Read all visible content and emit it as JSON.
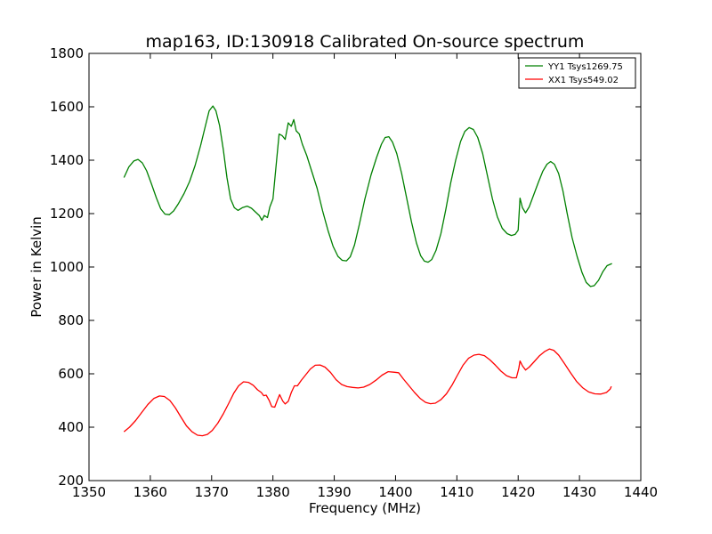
{
  "chart_data": {
    "type": "line",
    "title": "map163, ID:130918 Calibrated On-source spectrum",
    "xlabel": "Frequency (MHz)",
    "ylabel": "Power in Kelvin",
    "xlim": [
      1350,
      1440
    ],
    "ylim": [
      200,
      1800
    ],
    "xticks": [
      1350,
      1360,
      1370,
      1380,
      1390,
      1400,
      1410,
      1420,
      1430,
      1440
    ],
    "yticks": [
      200,
      400,
      600,
      800,
      1000,
      1200,
      1400,
      1600,
      1800
    ],
    "grid": false,
    "legend_position": "top-right",
    "series": [
      {
        "name": "YY1 Tsys1269.75",
        "color": "#008000",
        "points": [
          [
            1355.7,
            1335
          ],
          [
            1356.5,
            1375
          ],
          [
            1357.3,
            1397
          ],
          [
            1358.0,
            1403
          ],
          [
            1358.7,
            1390
          ],
          [
            1359.4,
            1360
          ],
          [
            1360.2,
            1310
          ],
          [
            1361.0,
            1258
          ],
          [
            1361.7,
            1218
          ],
          [
            1362.4,
            1198
          ],
          [
            1363.1,
            1196
          ],
          [
            1363.8,
            1210
          ],
          [
            1364.6,
            1238
          ],
          [
            1365.5,
            1275
          ],
          [
            1366.4,
            1320
          ],
          [
            1367.3,
            1380
          ],
          [
            1368.2,
            1455
          ],
          [
            1369.0,
            1530
          ],
          [
            1369.6,
            1585
          ],
          [
            1370.2,
            1603
          ],
          [
            1370.7,
            1585
          ],
          [
            1371.3,
            1530
          ],
          [
            1371.9,
            1440
          ],
          [
            1372.5,
            1335
          ],
          [
            1373.1,
            1255
          ],
          [
            1373.7,
            1222
          ],
          [
            1374.3,
            1212
          ],
          [
            1375.0,
            1222
          ],
          [
            1375.8,
            1228
          ],
          [
            1376.5,
            1220
          ],
          [
            1377.2,
            1205
          ],
          [
            1377.8,
            1192
          ],
          [
            1378.2,
            1175
          ],
          [
            1378.6,
            1193
          ],
          [
            1379.1,
            1185
          ],
          [
            1379.5,
            1225
          ],
          [
            1380.0,
            1255
          ],
          [
            1380.6,
            1400
          ],
          [
            1381.0,
            1498
          ],
          [
            1381.5,
            1492
          ],
          [
            1382.0,
            1478
          ],
          [
            1382.5,
            1540
          ],
          [
            1383.0,
            1527
          ],
          [
            1383.4,
            1552
          ],
          [
            1383.8,
            1510
          ],
          [
            1384.3,
            1498
          ],
          [
            1384.8,
            1460
          ],
          [
            1385.5,
            1418
          ],
          [
            1386.3,
            1360
          ],
          [
            1387.2,
            1295
          ],
          [
            1388.1,
            1210
          ],
          [
            1389.0,
            1135
          ],
          [
            1389.8,
            1078
          ],
          [
            1390.6,
            1040
          ],
          [
            1391.3,
            1025
          ],
          [
            1392.0,
            1023
          ],
          [
            1392.6,
            1038
          ],
          [
            1393.3,
            1082
          ],
          [
            1394.1,
            1160
          ],
          [
            1395.0,
            1255
          ],
          [
            1396.0,
            1345
          ],
          [
            1396.9,
            1410
          ],
          [
            1397.7,
            1460
          ],
          [
            1398.3,
            1485
          ],
          [
            1398.9,
            1488
          ],
          [
            1399.5,
            1468
          ],
          [
            1400.2,
            1425
          ],
          [
            1401.0,
            1350
          ],
          [
            1401.8,
            1260
          ],
          [
            1402.6,
            1168
          ],
          [
            1403.4,
            1090
          ],
          [
            1404.1,
            1042
          ],
          [
            1404.7,
            1022
          ],
          [
            1405.3,
            1018
          ],
          [
            1405.9,
            1028
          ],
          [
            1406.6,
            1062
          ],
          [
            1407.4,
            1125
          ],
          [
            1408.2,
            1215
          ],
          [
            1409.0,
            1315
          ],
          [
            1409.8,
            1400
          ],
          [
            1410.6,
            1470
          ],
          [
            1411.3,
            1508
          ],
          [
            1412.0,
            1522
          ],
          [
            1412.7,
            1515
          ],
          [
            1413.4,
            1485
          ],
          [
            1414.2,
            1425
          ],
          [
            1415.0,
            1340
          ],
          [
            1415.8,
            1255
          ],
          [
            1416.6,
            1188
          ],
          [
            1417.4,
            1145
          ],
          [
            1418.2,
            1125
          ],
          [
            1418.9,
            1118
          ],
          [
            1419.5,
            1122
          ],
          [
            1420.0,
            1138
          ],
          [
            1420.3,
            1258
          ],
          [
            1420.7,
            1222
          ],
          [
            1421.2,
            1203
          ],
          [
            1421.8,
            1225
          ],
          [
            1422.5,
            1268
          ],
          [
            1423.3,
            1318
          ],
          [
            1424.0,
            1358
          ],
          [
            1424.7,
            1385
          ],
          [
            1425.3,
            1395
          ],
          [
            1425.9,
            1385
          ],
          [
            1426.6,
            1350
          ],
          [
            1427.3,
            1285
          ],
          [
            1428.0,
            1200
          ],
          [
            1428.8,
            1110
          ],
          [
            1429.6,
            1040
          ],
          [
            1430.4,
            980
          ],
          [
            1431.1,
            942
          ],
          [
            1431.8,
            927
          ],
          [
            1432.4,
            930
          ],
          [
            1433.1,
            950
          ],
          [
            1433.8,
            982
          ],
          [
            1434.5,
            1005
          ],
          [
            1435.3,
            1013
          ]
        ]
      },
      {
        "name": "XX1 Tsys549.02",
        "color": "#ff0000",
        "points": [
          [
            1355.7,
            383
          ],
          [
            1356.6,
            400
          ],
          [
            1357.6,
            425
          ],
          [
            1358.6,
            455
          ],
          [
            1359.6,
            485
          ],
          [
            1360.6,
            508
          ],
          [
            1361.5,
            517
          ],
          [
            1362.3,
            515
          ],
          [
            1363.2,
            500
          ],
          [
            1364.1,
            472
          ],
          [
            1365.0,
            438
          ],
          [
            1365.9,
            405
          ],
          [
            1366.8,
            383
          ],
          [
            1367.7,
            370
          ],
          [
            1368.5,
            368
          ],
          [
            1369.3,
            373
          ],
          [
            1370.1,
            388
          ],
          [
            1371.0,
            415
          ],
          [
            1371.9,
            450
          ],
          [
            1372.8,
            490
          ],
          [
            1373.6,
            527
          ],
          [
            1374.4,
            555
          ],
          [
            1375.2,
            570
          ],
          [
            1376.0,
            568
          ],
          [
            1376.8,
            557
          ],
          [
            1377.5,
            540
          ],
          [
            1378.1,
            530
          ],
          [
            1378.5,
            518
          ],
          [
            1378.9,
            520
          ],
          [
            1379.4,
            500
          ],
          [
            1379.8,
            477
          ],
          [
            1380.3,
            475
          ],
          [
            1380.7,
            500
          ],
          [
            1381.1,
            522
          ],
          [
            1381.6,
            498
          ],
          [
            1382.0,
            487
          ],
          [
            1382.5,
            497
          ],
          [
            1383.0,
            530
          ],
          [
            1383.5,
            555
          ],
          [
            1384.0,
            555
          ],
          [
            1384.6,
            575
          ],
          [
            1385.3,
            595
          ],
          [
            1386.1,
            618
          ],
          [
            1386.9,
            632
          ],
          [
            1387.7,
            633
          ],
          [
            1388.5,
            625
          ],
          [
            1389.4,
            605
          ],
          [
            1390.3,
            578
          ],
          [
            1391.2,
            560
          ],
          [
            1392.1,
            552
          ],
          [
            1393.0,
            549
          ],
          [
            1393.9,
            547
          ],
          [
            1394.8,
            550
          ],
          [
            1395.8,
            560
          ],
          [
            1396.8,
            576
          ],
          [
            1397.8,
            595
          ],
          [
            1398.8,
            608
          ],
          [
            1399.7,
            606
          ],
          [
            1400.5,
            604
          ],
          [
            1401.3,
            580
          ],
          [
            1402.2,
            555
          ],
          [
            1403.1,
            530
          ],
          [
            1404.0,
            508
          ],
          [
            1404.9,
            493
          ],
          [
            1405.7,
            488
          ],
          [
            1406.5,
            490
          ],
          [
            1407.4,
            503
          ],
          [
            1408.3,
            525
          ],
          [
            1409.2,
            557
          ],
          [
            1410.1,
            595
          ],
          [
            1411.0,
            632
          ],
          [
            1411.9,
            658
          ],
          [
            1412.8,
            670
          ],
          [
            1413.6,
            673
          ],
          [
            1414.5,
            668
          ],
          [
            1415.4,
            652
          ],
          [
            1416.3,
            632
          ],
          [
            1417.2,
            610
          ],
          [
            1418.1,
            593
          ],
          [
            1419.0,
            585
          ],
          [
            1419.7,
            585
          ],
          [
            1420.1,
            620
          ],
          [
            1420.3,
            648
          ],
          [
            1420.7,
            630
          ],
          [
            1421.2,
            614
          ],
          [
            1421.8,
            625
          ],
          [
            1422.6,
            645
          ],
          [
            1423.5,
            668
          ],
          [
            1424.3,
            683
          ],
          [
            1425.1,
            693
          ],
          [
            1425.8,
            688
          ],
          [
            1426.6,
            670
          ],
          [
            1427.5,
            640
          ],
          [
            1428.5,
            605
          ],
          [
            1429.5,
            572
          ],
          [
            1430.5,
            548
          ],
          [
            1431.5,
            532
          ],
          [
            1432.5,
            525
          ],
          [
            1433.5,
            524
          ],
          [
            1434.4,
            530
          ],
          [
            1435.0,
            543
          ],
          [
            1435.2,
            553
          ]
        ]
      }
    ]
  }
}
